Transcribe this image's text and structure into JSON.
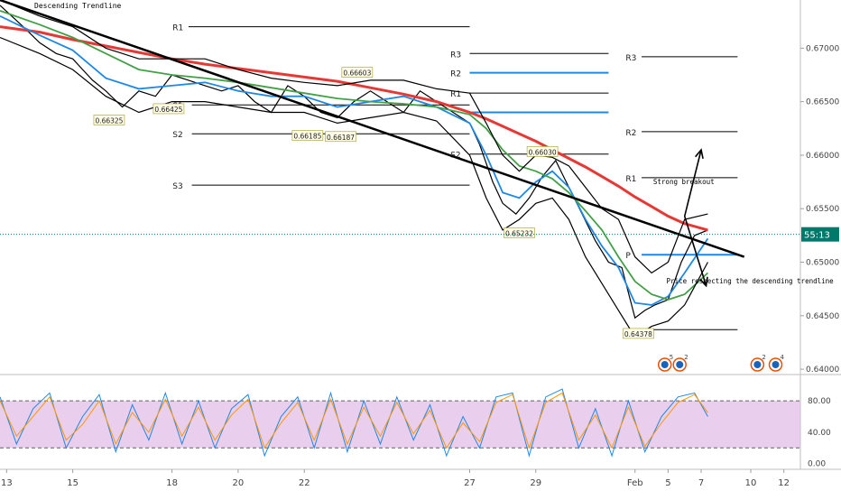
{
  "chart_data": [
    {
      "type": "line",
      "title": "Descending Trendline",
      "ylim": [
        0.6395,
        0.6745
      ],
      "y_ticks": [
        "0.67000",
        "0.66500",
        "0.66000",
        "0.65500",
        "0.65000",
        "0.64500",
        "0.64000"
      ],
      "x_ticks": [
        {
          "label": "13",
          "day": 13
        },
        {
          "label": "15",
          "day": 15
        },
        {
          "label": "18",
          "day": 18
        },
        {
          "label": "20",
          "day": 20
        },
        {
          "label": "22",
          "day": 22
        },
        {
          "label": "27",
          "day": 27
        },
        {
          "label": "29",
          "day": 29
        },
        {
          "label": "Feb",
          "day": 32
        },
        {
          "label": "5",
          "day": 33
        },
        {
          "label": "7",
          "day": 34
        },
        {
          "label": "10",
          "day": 35.5
        },
        {
          "label": "12",
          "day": 36.5
        }
      ],
      "current_price_label": "55:13",
      "current_price": 0.6526,
      "series": [
        {
          "name": "",
          "color": "#000000",
          "role": "price",
          "x": [
            12.8,
            13.5,
            14,
            14.5,
            15,
            15.3,
            15.6,
            16,
            16.5,
            17,
            17.5,
            18,
            18.5,
            19,
            19.5,
            20,
            20.5,
            21,
            21.5,
            22,
            22.5,
            23,
            23.5,
            24,
            24.5,
            25,
            25.5,
            26,
            26.5,
            27,
            27.3,
            27.7,
            28,
            28.4,
            28.8,
            29.2,
            29.6,
            30,
            30.4,
            30.8,
            31.2,
            31.6,
            32,
            32.3,
            32.6,
            33,
            33.4,
            33.8,
            34.2
          ],
          "y": [
            0.674,
            0.672,
            0.6705,
            0.6695,
            0.669,
            0.668,
            0.667,
            0.666,
            0.6645,
            0.666,
            0.6655,
            0.6675,
            0.667,
            0.6665,
            0.666,
            0.6665,
            0.665,
            0.664,
            0.6665,
            0.6655,
            0.664,
            0.6635,
            0.665,
            0.666,
            0.665,
            0.664,
            0.666,
            0.665,
            0.664,
            0.663,
            0.661,
            0.6575,
            0.6555,
            0.6545,
            0.656,
            0.658,
            0.6595,
            0.657,
            0.6545,
            0.652,
            0.65,
            0.6495,
            0.6448,
            0.6455,
            0.646,
            0.6465,
            0.65,
            0.6525,
            0.653
          ]
        },
        {
          "name": "",
          "color": "#e53935",
          "role": "moving-average",
          "x": [
            12.8,
            14,
            15,
            16,
            17,
            18,
            19,
            20,
            21,
            22,
            23,
            24,
            25,
            26,
            27,
            27.5,
            28,
            28.5,
            29,
            29.5,
            30,
            30.5,
            31,
            31.5,
            32,
            32.5,
            33,
            33.5,
            34.2
          ],
          "y": [
            0.672,
            0.6715,
            0.6708,
            0.6702,
            0.6696,
            0.669,
            0.6685,
            0.6681,
            0.6677,
            0.6673,
            0.6669,
            0.6663,
            0.6657,
            0.665,
            0.664,
            0.6634,
            0.6627,
            0.662,
            0.6613,
            0.6605,
            0.6597,
            0.6589,
            0.658,
            0.6571,
            0.6561,
            0.6552,
            0.6543,
            0.6536,
            0.653
          ]
        },
        {
          "name": "",
          "color": "#1e88e5",
          "role": "moving-average",
          "x": [
            12.8,
            14,
            15,
            16,
            17,
            18,
            19,
            20,
            21,
            22,
            23,
            24,
            25,
            26,
            27,
            27.5,
            28,
            28.5,
            29,
            29.5,
            30,
            30.5,
            31,
            31.5,
            32,
            32.5,
            33,
            33.5,
            34.2
          ],
          "y": [
            0.673,
            0.6712,
            0.6698,
            0.6672,
            0.6662,
            0.6665,
            0.6668,
            0.666,
            0.6655,
            0.6655,
            0.6645,
            0.665,
            0.6655,
            0.6645,
            0.663,
            0.66,
            0.6565,
            0.656,
            0.6575,
            0.6585,
            0.657,
            0.654,
            0.6515,
            0.6495,
            0.6462,
            0.646,
            0.6468,
            0.649,
            0.6522
          ]
        },
        {
          "name": "",
          "color": "#43a047",
          "role": "moving-average",
          "x": [
            12.8,
            14,
            15,
            16,
            17,
            18,
            19,
            20,
            21,
            22,
            23,
            24,
            25,
            26,
            27,
            27.5,
            28,
            28.5,
            29,
            29.5,
            30,
            30.5,
            31,
            31.5,
            32,
            32.5,
            33,
            33.5,
            34.2
          ],
          "y": [
            0.6735,
            0.6722,
            0.671,
            0.6695,
            0.668,
            0.6675,
            0.6672,
            0.6668,
            0.6663,
            0.6658,
            0.6653,
            0.665,
            0.6648,
            0.6645,
            0.6638,
            0.6625,
            0.6605,
            0.659,
            0.6585,
            0.6578,
            0.6565,
            0.6548,
            0.653,
            0.6505,
            0.6482,
            0.647,
            0.6465,
            0.647,
            0.649
          ]
        },
        {
          "name": "",
          "color": "#000000",
          "role": "upper-band",
          "x": [
            12.8,
            14,
            15,
            16,
            17,
            18,
            19,
            20,
            21,
            22,
            23,
            24,
            25,
            26,
            27,
            27.5,
            28,
            28.5,
            29,
            29.5,
            30,
            30.5,
            31,
            31.5,
            32,
            32.5,
            33,
            33.5,
            34.2
          ],
          "y": [
            0.6745,
            0.673,
            0.672,
            0.67,
            0.669,
            0.669,
            0.669,
            0.668,
            0.6672,
            0.6668,
            0.6665,
            0.667,
            0.667,
            0.6662,
            0.6658,
            0.663,
            0.66,
            0.6585,
            0.66,
            0.6598,
            0.659,
            0.657,
            0.655,
            0.654,
            0.6505,
            0.649,
            0.65,
            0.654,
            0.6545
          ]
        },
        {
          "name": "",
          "color": "#000000",
          "role": "lower-band",
          "x": [
            12.8,
            14,
            15,
            16,
            17,
            18,
            19,
            20,
            21,
            22,
            23,
            24,
            25,
            26,
            27,
            27.5,
            28,
            28.5,
            29,
            29.5,
            30,
            30.5,
            31,
            31.5,
            32,
            32.5,
            33,
            33.5,
            34.2
          ],
          "y": [
            0.671,
            0.6695,
            0.668,
            0.6655,
            0.664,
            0.665,
            0.665,
            0.6645,
            0.664,
            0.664,
            0.663,
            0.6635,
            0.664,
            0.6632,
            0.66,
            0.656,
            0.653,
            0.654,
            0.6555,
            0.656,
            0.654,
            0.6505,
            0.648,
            0.6455,
            0.643,
            0.644,
            0.6445,
            0.646,
            0.65
          ]
        }
      ],
      "trendline": {
        "from": [
          12.8,
          0.6745
        ],
        "to": [
          35.3,
          0.6505
        ]
      },
      "pivot_levels": [
        {
          "label": "R1",
          "value": 0.672,
          "x_from": 18.5,
          "x_to": 27,
          "label_x": 18.4,
          "color": "#000000"
        },
        {
          "label": "R3",
          "value": 0.6695,
          "x_from": 27,
          "x_to": 31.2,
          "label_x": 26.8,
          "color": "#000000"
        },
        {
          "label": "R3",
          "value": 0.6692,
          "x_from": 32.2,
          "x_to": 35.1,
          "label_x": 32.1,
          "color": "#000000"
        },
        {
          "label": "R2",
          "value": 0.6677,
          "x_from": 27,
          "x_to": 31.2,
          "label_x": 26.8,
          "color": "#1e88e5"
        },
        {
          "label": "R1",
          "value": 0.6658,
          "x_from": 27,
          "x_to": 31.2,
          "label_x": 26.8,
          "color": "#000000"
        },
        {
          "label": "S1",
          "value": 0.6647,
          "x_from": 18.6,
          "x_to": 27,
          "label_x": 18.4,
          "color": "#000000"
        },
        {
          "label": "",
          "value": 0.664,
          "x_from": 27,
          "x_to": 31.2,
          "label_x": 26.8,
          "color": "#1e88e5"
        },
        {
          "label": "R2",
          "value": 0.6622,
          "x_from": 32.2,
          "x_to": 35.1,
          "label_x": 32.1,
          "color": "#000000"
        },
        {
          "label": "S2",
          "value": 0.662,
          "x_from": 18.6,
          "x_to": 27,
          "label_x": 18.4,
          "color": "#000000"
        },
        {
          "label": "S2",
          "value": 0.6601,
          "x_from": 27,
          "x_to": 31.2,
          "label_x": 26.8,
          "color": "#000000"
        },
        {
          "label": "S3",
          "value": 0.6572,
          "x_from": 18.6,
          "x_to": 27,
          "label_x": 18.4,
          "color": "#000000"
        },
        {
          "label": "R1",
          "value": 0.6579,
          "x_from": 32.2,
          "x_to": 35.1,
          "label_x": 32.1,
          "color": "#000000"
        },
        {
          "label": "P",
          "value": 0.6507,
          "x_from": 32.2,
          "x_to": 35.1,
          "label_x": 32.1,
          "color": "#1e88e5"
        },
        {
          "label": "",
          "value": 0.6437,
          "x_from": 32.2,
          "x_to": 35.1,
          "label_x": 32.1,
          "color": "#000000"
        }
      ],
      "price_labels": [
        {
          "text": "0.66325",
          "x": 16.1,
          "y": 0.66325
        },
        {
          "text": "0.66425",
          "x": 17.9,
          "y": 0.6643
        },
        {
          "text": "0.66185",
          "x": 22.1,
          "y": 0.6618
        },
        {
          "text": "0.66187",
          "x": 23.1,
          "y": 0.6617
        },
        {
          "text": "0.66603",
          "x": 23.6,
          "y": 0.6677
        },
        {
          "text": "0.66030",
          "x": 29.2,
          "y": 0.6603
        },
        {
          "text": "0.65232",
          "x": 28.5,
          "y": 0.6527
        },
        {
          "text": "0.64378",
          "x": 32.1,
          "y": 0.6433
        }
      ],
      "annotations": [
        {
          "text": "Strong breakout",
          "x": 32.55,
          "y": 0.6573
        },
        {
          "text": "Price respecting the descending trendline",
          "x": 32.95,
          "y": 0.648
        }
      ],
      "arrows": [
        {
          "from": [
            33.5,
            0.6543
          ],
          "to": [
            34.0,
            0.6605
          ]
        },
        {
          "from": [
            33.5,
            0.6543
          ],
          "to": [
            34.15,
            0.6478
          ]
        }
      ],
      "event_markers": [
        {
          "count": "5",
          "x": 32.9
        },
        {
          "count": "2",
          "x": 33.35
        },
        {
          "count": "2",
          "x": 35.7
        },
        {
          "count": "4",
          "x": 36.25
        }
      ],
      "x_range": [
        12.8,
        37
      ]
    },
    {
      "type": "line",
      "title": "",
      "ylim": [
        -5,
        102
      ],
      "y_ticks": [
        "80.00",
        "40.00",
        "0.00"
      ],
      "overbought": 80,
      "oversold": 20,
      "x_range": [
        12.8,
        37
      ],
      "series": [
        {
          "name": "",
          "color": "#1e88e5",
          "role": "stochastic-k",
          "x": [
            12.8,
            13.3,
            13.8,
            14.3,
            14.8,
            15.3,
            15.8,
            16.3,
            16.8,
            17.3,
            17.8,
            18.3,
            18.8,
            19.3,
            19.8,
            20.3,
            20.8,
            21.3,
            21.8,
            22.3,
            22.8,
            23.3,
            23.8,
            24.3,
            24.8,
            25.3,
            25.8,
            26.3,
            26.8,
            27.3,
            27.8,
            28.3,
            28.8,
            29.3,
            29.8,
            30.3,
            30.8,
            31.3,
            31.8,
            32.3,
            32.8,
            33.3,
            33.8,
            34.2
          ],
          "y": [
            85,
            25,
            70,
            90,
            20,
            60,
            88,
            15,
            75,
            30,
            90,
            25,
            80,
            20,
            70,
            88,
            10,
            60,
            85,
            20,
            90,
            15,
            80,
            25,
            85,
            30,
            75,
            10,
            60,
            20,
            85,
            90,
            10,
            85,
            95,
            20,
            70,
            10,
            80,
            15,
            60,
            85,
            90,
            60
          ]
        },
        {
          "name": "",
          "color": "#ff9800",
          "role": "stochastic-d",
          "x": [
            12.8,
            13.3,
            13.8,
            14.3,
            14.8,
            15.3,
            15.8,
            16.3,
            16.8,
            17.3,
            17.8,
            18.3,
            18.8,
            19.3,
            19.8,
            20.3,
            20.8,
            21.3,
            21.8,
            22.3,
            22.8,
            23.3,
            23.8,
            24.3,
            24.8,
            25.3,
            25.8,
            26.3,
            26.8,
            27.3,
            27.8,
            28.3,
            28.8,
            29.3,
            29.8,
            30.3,
            30.8,
            31.3,
            31.8,
            32.3,
            32.8,
            33.3,
            33.8,
            34.2
          ],
          "y": [
            80,
            35,
            60,
            85,
            30,
            50,
            80,
            25,
            65,
            40,
            82,
            35,
            72,
            30,
            62,
            82,
            20,
            52,
            78,
            30,
            82,
            25,
            72,
            35,
            78,
            38,
            68,
            20,
            52,
            28,
            78,
            88,
            20,
            78,
            90,
            30,
            62,
            20,
            72,
            22,
            52,
            78,
            88,
            65
          ]
        }
      ]
    }
  ]
}
